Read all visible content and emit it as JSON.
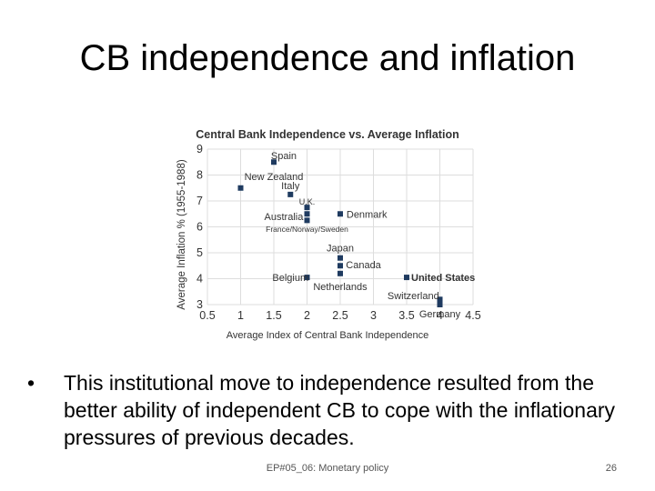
{
  "slide": {
    "title": "CB independence and inflation",
    "bullet_symbol": "•",
    "bullet": "This institutional move to  independence resulted from the better ability of independent CB to cope with the inflationary pressures of previous decades.",
    "footer": "EP#05_06: Monetary policy",
    "page_number": "26"
  },
  "chart_data": {
    "type": "scatter",
    "title": "Central Bank Independence vs. Average Inflation",
    "xlabel": "Average Index of Central Bank Independence",
    "ylabel": "Average Inflation % (1955-1988)",
    "xlim": [
      0.5,
      4.5
    ],
    "ylim": [
      3,
      9
    ],
    "xticks": [
      "0.5",
      "1",
      "1.5",
      "2",
      "2.5",
      "3",
      "3.5",
      "4",
      "4.5"
    ],
    "yticks": [
      "3",
      "4",
      "5",
      "6",
      "7",
      "8",
      "9"
    ],
    "grid": true,
    "marker_color": "#1f3b60",
    "points": [
      {
        "x": 1.5,
        "y": 8.5
      },
      {
        "x": 1.0,
        "y": 7.5
      },
      {
        "x": 1.75,
        "y": 7.25
      },
      {
        "x": 2.0,
        "y": 6.75
      },
      {
        "x": 2.0,
        "y": 6.5
      },
      {
        "x": 2.0,
        "y": 6.25
      },
      {
        "x": 2.5,
        "y": 6.5
      },
      {
        "x": 2.5,
        "y": 4.8
      },
      {
        "x": 2.5,
        "y": 4.5
      },
      {
        "x": 2.5,
        "y": 4.2
      },
      {
        "x": 2.0,
        "y": 4.05
      },
      {
        "x": 3.5,
        "y": 4.05
      },
      {
        "x": 4.0,
        "y": 3.2
      },
      {
        "x": 4.0,
        "y": 3.0
      }
    ],
    "labels": [
      {
        "text": "Spain",
        "x": 1.65,
        "y": 8.75,
        "bold": false,
        "size": 11
      },
      {
        "text": "New Zealand",
        "x": 1.5,
        "y": 7.95,
        "bold": false,
        "size": 11
      },
      {
        "text": "Italy",
        "x": 1.75,
        "y": 7.6,
        "bold": false,
        "size": 11
      },
      {
        "text": "U.K.",
        "x": 2.0,
        "y": 7.0,
        "bold": false,
        "size": 9
      },
      {
        "text": "Australia",
        "x": 1.65,
        "y": 6.4,
        "bold": false,
        "size": 11
      },
      {
        "text": "Denmark",
        "x": 2.9,
        "y": 6.5,
        "bold": false,
        "size": 11
      },
      {
        "text": "France/Norway/Sweden",
        "x": 2.0,
        "y": 5.95,
        "bold": false,
        "size": 8.5
      },
      {
        "text": "Japan",
        "x": 2.5,
        "y": 5.2,
        "bold": false,
        "size": 11
      },
      {
        "text": "Canada",
        "x": 2.85,
        "y": 4.55,
        "bold": false,
        "size": 11
      },
      {
        "text": "United States",
        "x": 4.05,
        "y": 4.05,
        "bold": true,
        "size": 11
      },
      {
        "text": "Belgium",
        "x": 1.75,
        "y": 4.05,
        "bold": false,
        "size": 11
      },
      {
        "text": "Netherlands",
        "x": 2.5,
        "y": 3.7,
        "bold": false,
        "size": 11
      },
      {
        "text": "Switzerland",
        "x": 3.6,
        "y": 3.35,
        "bold": false,
        "size": 11
      },
      {
        "text": "Germany",
        "x": 4.0,
        "y": 2.65,
        "bold": false,
        "size": 11
      }
    ]
  }
}
